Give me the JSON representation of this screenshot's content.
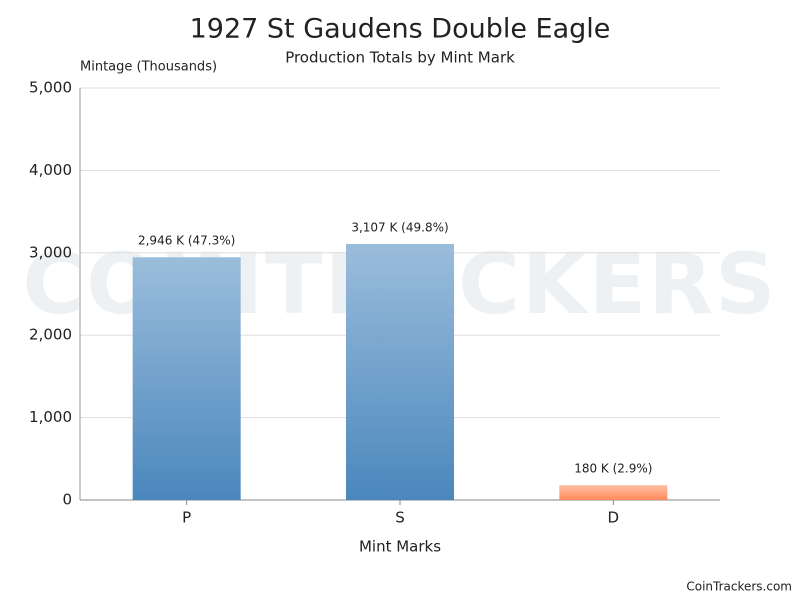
{
  "chart_data": {
    "type": "bar",
    "title": "1927 St Gaudens Double Eagle",
    "subtitle": "Production Totals by Mint Mark",
    "y_label": "Mintage (Thousands)",
    "x_label": "Mint Marks",
    "categories": [
      "P",
      "S",
      "D"
    ],
    "values": [
      2946,
      3107,
      180
    ],
    "value_labels": [
      "2,946 K (47.3%)",
      "3,107 K (49.8%)",
      "180 K (2.9%)"
    ],
    "colors": [
      "#4a87bd",
      "#4a87bd",
      "#ff8a5c"
    ],
    "ylim": [
      0,
      5000
    ],
    "yticks": [
      0,
      {
        "value": 1000,
        "label": "1,000"
      },
      {
        "value": 2000,
        "label": "2,000"
      },
      {
        "value": 3000,
        "label": "3,000"
      },
      {
        "value": 4000,
        "label": "4,000"
      },
      {
        "value": 5000,
        "label": "5,000"
      }
    ],
    "grid": true,
    "watermark": "COINTRACKERS",
    "footer": "CoinTrackers.com"
  }
}
